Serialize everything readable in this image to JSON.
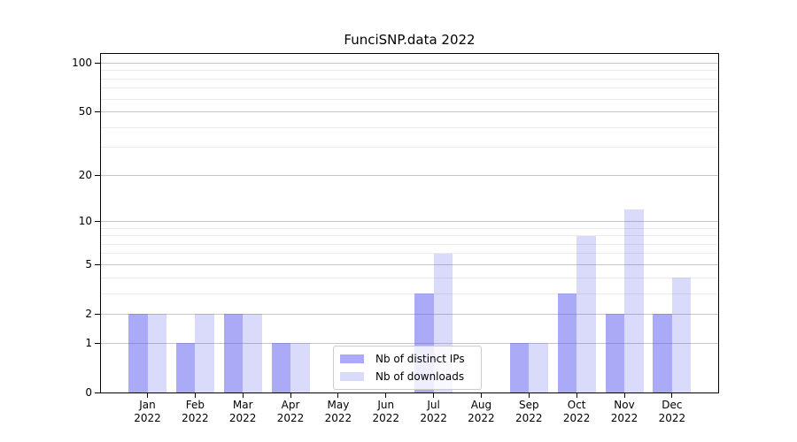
{
  "chart_data": {
    "type": "bar",
    "title": "FunciSNP.data 2022",
    "categories": [
      "Jan",
      "Feb",
      "Mar",
      "Apr",
      "May",
      "Jun",
      "Jul",
      "Aug",
      "Sep",
      "Oct",
      "Nov",
      "Dec"
    ],
    "year_label": "2022",
    "series": [
      {
        "name": "Nb of distinct IPs",
        "color": "rgba(85,85,238,0.5)",
        "values": [
          2,
          1,
          2,
          1,
          0,
          0,
          3,
          0,
          1,
          3,
          2,
          2
        ]
      },
      {
        "name": "Nb of downloads",
        "color": "rgba(85,85,238,0.22)",
        "values": [
          2,
          2,
          2,
          1,
          0,
          0,
          6,
          0,
          1,
          8,
          12,
          4
        ]
      }
    ],
    "y_scale": "log1p",
    "y_ticks": [
      0,
      1,
      2,
      5,
      10,
      20,
      50,
      100
    ],
    "y_minor_ticks": [
      3,
      4,
      6,
      7,
      8,
      9,
      30,
      40,
      60,
      70,
      80,
      90
    ],
    "ylim": [
      0,
      113
    ],
    "xlabel": "",
    "ylabel": "",
    "grid": "horizontal",
    "legend_position": "bottom-center"
  },
  "colors": {
    "background": "#ffffff",
    "axis": "#000000",
    "grid_major": "#c6c6c6",
    "grid_minor": "#ebebeb",
    "bar_base": "#5555ee"
  }
}
